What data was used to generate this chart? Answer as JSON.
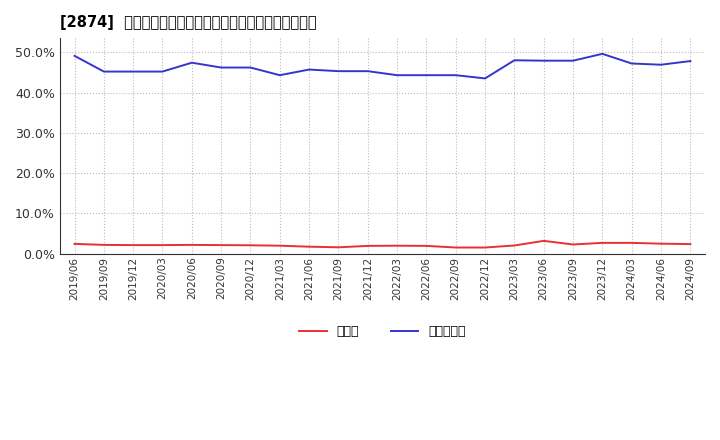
{
  "title": "[2874]  現領金、有利子負債の総資産に対する比率の推移",
  "dates": [
    "2019/06",
    "2019/09",
    "2019/12",
    "2020/03",
    "2020/06",
    "2020/09",
    "2020/12",
    "2021/03",
    "2021/06",
    "2021/09",
    "2021/12",
    "2022/03",
    "2022/06",
    "2022/09",
    "2022/12",
    "2023/03",
    "2023/06",
    "2023/09",
    "2023/12",
    "2024/03",
    "2024/06",
    "2024/09"
  ],
  "cash": [
    0.0245,
    0.022,
    0.0215,
    0.0215,
    0.022,
    0.0215,
    0.021,
    0.02,
    0.0175,
    0.016,
    0.0195,
    0.02,
    0.0195,
    0.0155,
    0.0155,
    0.0205,
    0.032,
    0.023,
    0.027,
    0.027,
    0.025,
    0.024
  ],
  "debt": [
    0.491,
    0.452,
    0.452,
    0.452,
    0.474,
    0.462,
    0.462,
    0.443,
    0.457,
    0.453,
    0.453,
    0.443,
    0.443,
    0.443,
    0.435,
    0.48,
    0.479,
    0.479,
    0.496,
    0.472,
    0.469,
    0.478
  ],
  "cash_color": "#e83030",
  "debt_color": "#3535cc",
  "background_color": "#ffffff",
  "grid_color": "#aaaaaa",
  "legend_cash": "現領金",
  "legend_debt": "有利子負債",
  "ylim": [
    0.0,
    0.535
  ],
  "yticks": [
    0.0,
    0.1,
    0.2,
    0.3,
    0.4,
    0.5
  ]
}
